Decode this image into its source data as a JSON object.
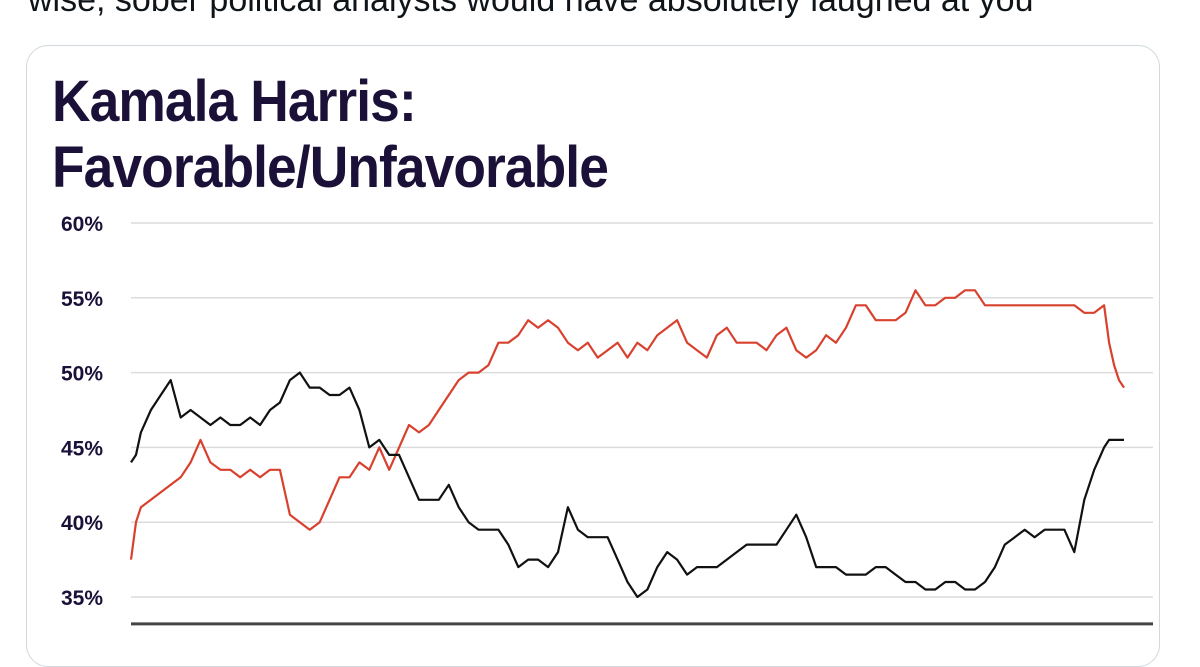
{
  "tweet": {
    "text": "wise, sober political analysts would have absolutely laughed at you"
  },
  "chart_data": {
    "type": "line",
    "title_line1": "Kamala Harris:",
    "title_line2": "Favorable/Unfavorable",
    "xlabel": "",
    "ylabel": "",
    "ylim": [
      34,
      60
    ],
    "yticks": [
      60,
      55,
      50,
      45,
      40,
      35
    ],
    "ytick_labels": [
      "60%",
      "55%",
      "50%",
      "45%",
      "40%",
      "35%"
    ],
    "grid": true,
    "legend": "none",
    "series": [
      {
        "color": "#d9412f",
        "x": [
          0,
          0.5,
          1,
          2,
          3,
          4,
          5,
          6,
          7,
          8,
          9,
          10,
          11,
          12,
          13,
          14,
          15,
          16,
          17,
          18,
          19,
          20,
          21,
          22,
          23,
          24,
          25,
          26,
          27,
          28,
          29,
          30,
          31,
          32,
          33,
          34,
          35,
          36,
          37,
          38,
          39,
          40,
          41,
          42,
          43,
          44,
          45,
          46,
          47,
          48,
          49,
          50,
          51,
          52,
          53,
          54,
          55,
          56,
          57,
          58,
          59,
          60,
          61,
          62,
          63,
          64,
          65,
          66,
          67,
          68,
          69,
          70,
          71,
          72,
          73,
          74,
          75,
          76,
          77,
          78,
          79,
          80,
          81,
          82,
          83,
          84,
          85,
          86,
          87,
          88,
          89,
          90,
          91,
          92,
          93,
          94,
          95,
          96,
          97,
          98,
          98.5,
          99,
          99.5,
          100
        ],
        "y": [
          37.5,
          40,
          41,
          41.5,
          42,
          42.5,
          43,
          44,
          45.5,
          44,
          43.5,
          43.5,
          43,
          43.5,
          43,
          43.5,
          43.5,
          40.5,
          40,
          39.5,
          40,
          41.5,
          43,
          43,
          44,
          43.5,
          45,
          43.5,
          45,
          46.5,
          46,
          46.5,
          47.5,
          48.5,
          49.5,
          50,
          50,
          50.5,
          52,
          52,
          52.5,
          53.5,
          53,
          53.5,
          53,
          52,
          51.5,
          52,
          51,
          51.5,
          52,
          51,
          52,
          51.5,
          52.5,
          53,
          53.5,
          52,
          51.5,
          51,
          52.5,
          53,
          52,
          52,
          52,
          51.5,
          52.5,
          53,
          51.5,
          51,
          51.5,
          52.5,
          52,
          53,
          54.5,
          54.5,
          53.5,
          53.5,
          53.5,
          54,
          55.5,
          54.5,
          54.5,
          55,
          55,
          55.5,
          55.5,
          54.5,
          54.5,
          54.5,
          54.5,
          54.5,
          54.5,
          54.5,
          54.5,
          54.5,
          54.5,
          54,
          54,
          54.5,
          52,
          50.5,
          49.5,
          49
        ]
      },
      {
        "color": "#111111",
        "x": [
          0,
          0.5,
          1,
          2,
          3,
          4,
          5,
          6,
          7,
          8,
          9,
          10,
          11,
          12,
          13,
          14,
          15,
          16,
          17,
          18,
          19,
          20,
          21,
          22,
          23,
          24,
          25,
          26,
          27,
          28,
          29,
          30,
          31,
          32,
          33,
          34,
          35,
          36,
          37,
          38,
          39,
          40,
          41,
          42,
          43,
          44,
          45,
          46,
          47,
          48,
          49,
          50,
          51,
          52,
          53,
          54,
          55,
          56,
          57,
          58,
          59,
          60,
          61,
          62,
          63,
          64,
          65,
          66,
          67,
          68,
          69,
          70,
          71,
          72,
          73,
          74,
          75,
          76,
          77,
          78,
          79,
          80,
          81,
          82,
          83,
          84,
          85,
          86,
          87,
          88,
          89,
          90,
          91,
          92,
          93,
          94,
          95,
          96,
          97,
          98,
          98.5,
          99,
          99.5,
          100
        ],
        "y": [
          44,
          44.5,
          46,
          47.5,
          48.5,
          49.5,
          47,
          47.5,
          47,
          46.5,
          47,
          46.5,
          46.5,
          47,
          46.5,
          47.5,
          48,
          49.5,
          50,
          49,
          49,
          48.5,
          48.5,
          49,
          47.5,
          45,
          45.5,
          44.5,
          44.5,
          43,
          41.5,
          41.5,
          41.5,
          42.5,
          41,
          40,
          39.5,
          39.5,
          39.5,
          38.5,
          37,
          37.5,
          37.5,
          37,
          38,
          41,
          39.5,
          39,
          39,
          39,
          37.5,
          36,
          35,
          35.5,
          37,
          38,
          37.5,
          36.5,
          37,
          37,
          37,
          37.5,
          38,
          38.5,
          38.5,
          38.5,
          38.5,
          39.5,
          40.5,
          39,
          37,
          37,
          37,
          36.5,
          36.5,
          36.5,
          37,
          37,
          36.5,
          36,
          36,
          35.5,
          35.5,
          36,
          36,
          35.5,
          35.5,
          36,
          37,
          38.5,
          39,
          39.5,
          39,
          39.5,
          39.5,
          39.5,
          38,
          41.5,
          43.5,
          45,
          45.5,
          45.5,
          45.5,
          45.5
        ]
      }
    ]
  }
}
